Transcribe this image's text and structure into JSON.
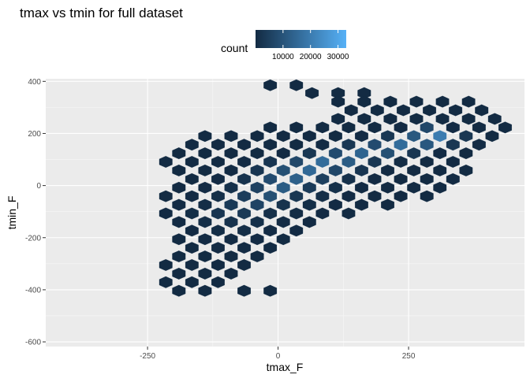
{
  "chart_data": {
    "type": "hexbin",
    "title": "tmax vs tmin for full dataset",
    "xlabel": "tmax_F",
    "ylabel": "tmin_F",
    "xlim": [
      -445,
      472
    ],
    "ylim": [
      -618,
      410
    ],
    "x_ticks": [
      -250,
      0,
      250
    ],
    "y_ticks": [
      -600,
      -400,
      -200,
      0,
      200,
      400
    ],
    "x_tick_labels": [
      "-250",
      "0",
      "250"
    ],
    "y_tick_labels": [
      "-600",
      "-400",
      "-200",
      "0",
      "200",
      "400"
    ],
    "grid": true,
    "legend": {
      "title": "count",
      "position": "top",
      "ticks": [
        10000,
        20000,
        30000
      ],
      "tick_labels": [
        "10000",
        "20000",
        "30000"
      ],
      "range": [
        1,
        33000
      ],
      "color_low": "#132B43",
      "color_high": "#56B1F7"
    },
    "hex_size": [
      25,
      33
    ],
    "bins": [
      [
        -15,
        385,
        10
      ],
      [
        35,
        385,
        10
      ],
      [
        65,
        355,
        10
      ],
      [
        115,
        355,
        10
      ],
      [
        165,
        355,
        10
      ],
      [
        115,
        322,
        10
      ],
      [
        165,
        322,
        10
      ],
      [
        215,
        322,
        10
      ],
      [
        265,
        322,
        10
      ],
      [
        315,
        322,
        10
      ],
      [
        365,
        322,
        10
      ],
      [
        140,
        289,
        10
      ],
      [
        190,
        289,
        10
      ],
      [
        240,
        289,
        10
      ],
      [
        290,
        289,
        10
      ],
      [
        340,
        289,
        10
      ],
      [
        390,
        289,
        10
      ],
      [
        115,
        256,
        10
      ],
      [
        165,
        256,
        10
      ],
      [
        215,
        256,
        10
      ],
      [
        265,
        256,
        10
      ],
      [
        315,
        256,
        10
      ],
      [
        365,
        256,
        10
      ],
      [
        415,
        256,
        10
      ],
      [
        -15,
        223,
        10
      ],
      [
        35,
        223,
        10
      ],
      [
        85,
        223,
        10
      ],
      [
        135,
        223,
        10
      ],
      [
        185,
        223,
        10
      ],
      [
        235,
        223,
        100
      ],
      [
        285,
        223,
        7000
      ],
      [
        335,
        223,
        100
      ],
      [
        385,
        223,
        10
      ],
      [
        435,
        223,
        10
      ],
      [
        -140,
        190,
        10
      ],
      [
        -90,
        190,
        10
      ],
      [
        -40,
        190,
        10
      ],
      [
        10,
        190,
        10
      ],
      [
        60,
        190,
        10
      ],
      [
        110,
        190,
        10
      ],
      [
        160,
        190,
        100
      ],
      [
        210,
        190,
        3000
      ],
      [
        260,
        190,
        11000
      ],
      [
        310,
        190,
        20000
      ],
      [
        360,
        190,
        3000
      ],
      [
        410,
        190,
        10
      ],
      [
        -165,
        157,
        10
      ],
      [
        -115,
        157,
        10
      ],
      [
        -65,
        157,
        10
      ],
      [
        -15,
        157,
        10
      ],
      [
        35,
        157,
        10
      ],
      [
        85,
        157,
        100
      ],
      [
        135,
        157,
        3000
      ],
      [
        185,
        157,
        8000
      ],
      [
        235,
        157,
        16000
      ],
      [
        285,
        157,
        11000
      ],
      [
        335,
        157,
        3000
      ],
      [
        385,
        157,
        100
      ],
      [
        -190,
        124,
        10
      ],
      [
        -140,
        124,
        10
      ],
      [
        -90,
        124,
        10
      ],
      [
        -40,
        124,
        10
      ],
      [
        10,
        124,
        100
      ],
      [
        60,
        124,
        3000
      ],
      [
        110,
        124,
        8000
      ],
      [
        160,
        124,
        14000
      ],
      [
        210,
        124,
        9000
      ],
      [
        260,
        124,
        3000
      ],
      [
        310,
        124,
        100
      ],
      [
        360,
        124,
        10
      ],
      [
        -215,
        91,
        10
      ],
      [
        -165,
        91,
        10
      ],
      [
        -115,
        91,
        10
      ],
      [
        -65,
        91,
        100
      ],
      [
        -15,
        91,
        2500
      ],
      [
        35,
        91,
        7000
      ],
      [
        85,
        91,
        16000
      ],
      [
        135,
        91,
        12000
      ],
      [
        185,
        91,
        3000
      ],
      [
        235,
        91,
        500
      ],
      [
        285,
        91,
        10
      ],
      [
        335,
        91,
        10
      ],
      [
        -190,
        58,
        10
      ],
      [
        -140,
        58,
        10
      ],
      [
        -90,
        58,
        100
      ],
      [
        -40,
        58,
        2500
      ],
      [
        10,
        58,
        9000
      ],
      [
        60,
        58,
        15000
      ],
      [
        110,
        58,
        7000
      ],
      [
        160,
        58,
        2500
      ],
      [
        210,
        58,
        100
      ],
      [
        260,
        58,
        10
      ],
      [
        310,
        58,
        10
      ],
      [
        360,
        58,
        10
      ],
      [
        -165,
        25,
        10
      ],
      [
        -115,
        25,
        100
      ],
      [
        -65,
        25,
        2000
      ],
      [
        -15,
        25,
        8000
      ],
      [
        35,
        25,
        13000
      ],
      [
        85,
        25,
        5000
      ],
      [
        135,
        25,
        1500
      ],
      [
        185,
        25,
        100
      ],
      [
        235,
        25,
        10
      ],
      [
        285,
        25,
        10
      ],
      [
        335,
        25,
        10
      ],
      [
        -190,
        -8,
        10
      ],
      [
        -140,
        -8,
        100
      ],
      [
        -90,
        -8,
        1500
      ],
      [
        -40,
        -8,
        5500
      ],
      [
        10,
        -8,
        12000
      ],
      [
        60,
        -8,
        4000
      ],
      [
        110,
        -8,
        1200
      ],
      [
        160,
        -8,
        100
      ],
      [
        210,
        -8,
        10
      ],
      [
        260,
        -8,
        10
      ],
      [
        310,
        -8,
        10
      ],
      [
        -215,
        -41,
        10
      ],
      [
        -165,
        -41,
        100
      ],
      [
        -115,
        -41,
        1000
      ],
      [
        -65,
        -41,
        4500
      ],
      [
        -15,
        -41,
        9000
      ],
      [
        35,
        -41,
        3000
      ],
      [
        85,
        -41,
        900
      ],
      [
        135,
        -41,
        100
      ],
      [
        185,
        -41,
        10
      ],
      [
        235,
        -41,
        10
      ],
      [
        285,
        -41,
        10
      ],
      [
        -190,
        -74,
        100
      ],
      [
        -140,
        -74,
        700
      ],
      [
        -90,
        -74,
        3500
      ],
      [
        -40,
        -74,
        6000
      ],
      [
        10,
        -74,
        2000
      ],
      [
        60,
        -74,
        700
      ],
      [
        110,
        -74,
        100
      ],
      [
        160,
        -74,
        10
      ],
      [
        210,
        -74,
        10
      ],
      [
        -215,
        -107,
        100
      ],
      [
        -165,
        -107,
        700
      ],
      [
        -115,
        -107,
        2500
      ],
      [
        -65,
        -107,
        3500
      ],
      [
        -15,
        -107,
        1300
      ],
      [
        35,
        -107,
        500
      ],
      [
        85,
        -107,
        100
      ],
      [
        135,
        -107,
        10
      ],
      [
        -190,
        -140,
        100
      ],
      [
        -140,
        -140,
        900
      ],
      [
        -90,
        -140,
        2000
      ],
      [
        -40,
        -140,
        1200
      ],
      [
        10,
        -140,
        300
      ],
      [
        60,
        -140,
        100
      ],
      [
        -165,
        -173,
        100
      ],
      [
        -115,
        -173,
        700
      ],
      [
        -65,
        -173,
        900
      ],
      [
        -15,
        -173,
        300
      ],
      [
        35,
        -173,
        100
      ],
      [
        -190,
        -206,
        10
      ],
      [
        -140,
        -206,
        100
      ],
      [
        -90,
        -206,
        300
      ],
      [
        -40,
        -206,
        100
      ],
      [
        10,
        -206,
        10
      ],
      [
        -165,
        -239,
        10
      ],
      [
        -115,
        -239,
        100
      ],
      [
        -65,
        -239,
        100
      ],
      [
        -15,
        -239,
        10
      ],
      [
        -190,
        -272,
        10
      ],
      [
        -140,
        -272,
        10
      ],
      [
        -90,
        -272,
        10
      ],
      [
        -40,
        -272,
        10
      ],
      [
        -215,
        -305,
        10
      ],
      [
        -165,
        -305,
        10
      ],
      [
        -115,
        -305,
        10
      ],
      [
        -65,
        -305,
        10
      ],
      [
        -190,
        -338,
        10
      ],
      [
        -140,
        -338,
        10
      ],
      [
        -90,
        -338,
        10
      ],
      [
        -215,
        -371,
        10
      ],
      [
        -165,
        -371,
        10
      ],
      [
        -115,
        -371,
        10
      ],
      [
        -190,
        -404,
        10
      ],
      [
        -140,
        -404,
        10
      ],
      [
        -65,
        -404,
        10
      ],
      [
        -15,
        -404,
        10
      ]
    ]
  }
}
